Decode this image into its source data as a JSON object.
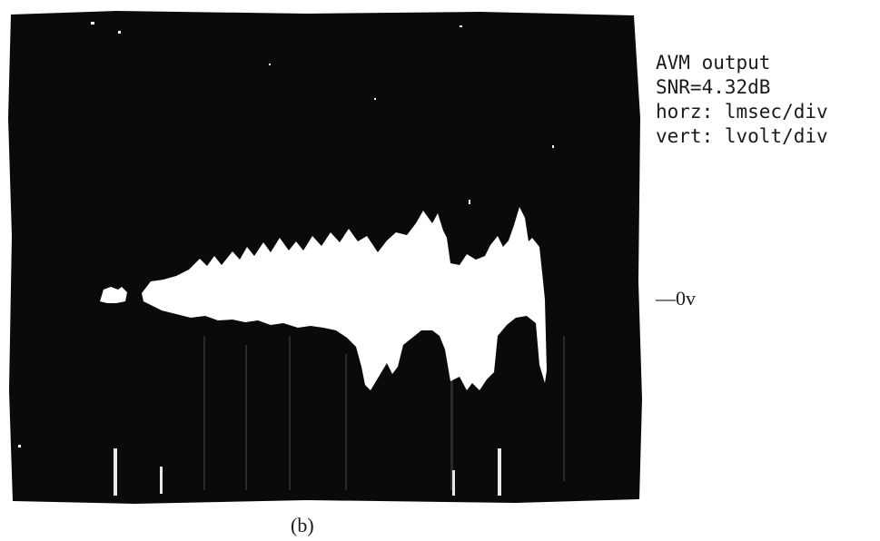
{
  "figure": {
    "legend_lines": [
      "AVM output",
      "SNR=4.32dB",
      "horz: lmsec/div",
      "vert: lvolt/div"
    ],
    "zero_marker": "—0v",
    "caption": "(b)",
    "screen_color": "#0a0a0a",
    "trace_color": "#ffffff",
    "background": "#ffffff"
  }
}
